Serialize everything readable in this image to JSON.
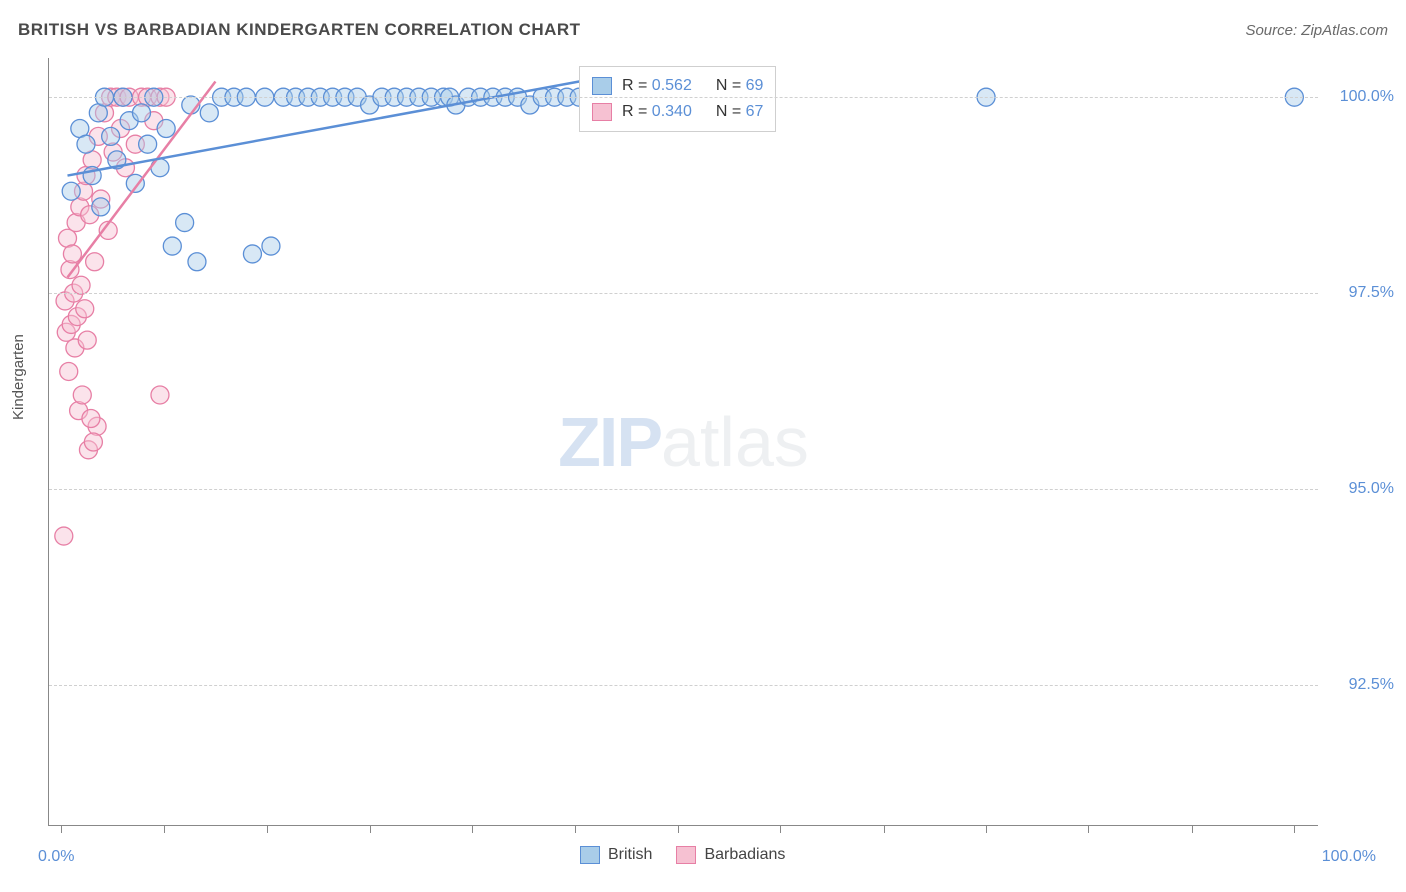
{
  "header": {
    "title": "BRITISH VS BARBADIAN KINDERGARTEN CORRELATION CHART",
    "source": "Source: ZipAtlas.com"
  },
  "axes": {
    "ylabel": "Kindergarten",
    "y_ticks": [
      {
        "value": 100.0,
        "label": "100.0%"
      },
      {
        "value": 97.5,
        "label": "97.5%"
      },
      {
        "value": 95.0,
        "label": "95.0%"
      },
      {
        "value": 92.5,
        "label": "92.5%"
      }
    ],
    "y_min": 90.7,
    "y_max": 100.5,
    "x_min": -1.0,
    "x_max": 102.0,
    "x_tick_positions": [
      0,
      8.3,
      16.7,
      25,
      33.3,
      41.7,
      50,
      58.3,
      66.7,
      75,
      83.3,
      91.7,
      100
    ],
    "x_left_label": "0.0%",
    "x_right_label": "100.0%"
  },
  "colors": {
    "series1_fill": "#a9cde9",
    "series1_stroke": "#5b8fd6",
    "series2_fill": "#f6c1d2",
    "series2_stroke": "#e77fa5",
    "grid": "#d0d0d0",
    "axis": "#888888",
    "tick_text": "#5b8fd6",
    "title_text": "#4a4a4a"
  },
  "marker": {
    "radius": 9,
    "fill_opacity": 0.45,
    "stroke_width": 1.3
  },
  "legend_stats": {
    "series1": {
      "R": "0.562",
      "N": "69"
    },
    "series2": {
      "R": "0.340",
      "N": "67"
    },
    "labels": {
      "r_prefix": "R = ",
      "n_prefix": "N = "
    }
  },
  "bottom_legend": {
    "series1": "British",
    "series2": "Barbadians"
  },
  "watermark": {
    "part1": "ZIP",
    "part2": "atlas"
  },
  "trend_lines": {
    "series1": {
      "x1": 0.5,
      "y1": 99.0,
      "x2": 42.0,
      "y2": 100.2
    },
    "series2": {
      "x1": 0.5,
      "y1": 97.7,
      "x2": 12.5,
      "y2": 100.2
    }
  },
  "series1_points": [
    [
      0.8,
      98.8
    ],
    [
      1.5,
      99.6
    ],
    [
      2.0,
      99.4
    ],
    [
      2.5,
      99.0
    ],
    [
      3.0,
      99.8
    ],
    [
      3.2,
      98.6
    ],
    [
      3.5,
      100.0
    ],
    [
      4.0,
      99.5
    ],
    [
      4.5,
      99.2
    ],
    [
      5.0,
      100.0
    ],
    [
      5.5,
      99.7
    ],
    [
      6.0,
      98.9
    ],
    [
      6.5,
      99.8
    ],
    [
      7.0,
      99.4
    ],
    [
      7.5,
      100.0
    ],
    [
      8.0,
      99.1
    ],
    [
      8.5,
      99.6
    ],
    [
      9.0,
      98.1
    ],
    [
      10.0,
      98.4
    ],
    [
      10.5,
      99.9
    ],
    [
      11.0,
      97.9
    ],
    [
      12.0,
      99.8
    ],
    [
      13.0,
      100.0
    ],
    [
      14.0,
      100.0
    ],
    [
      15.0,
      100.0
    ],
    [
      15.5,
      98.0
    ],
    [
      16.5,
      100.0
    ],
    [
      17.0,
      98.1
    ],
    [
      18.0,
      100.0
    ],
    [
      19.0,
      100.0
    ],
    [
      20.0,
      100.0
    ],
    [
      21.0,
      100.0
    ],
    [
      22.0,
      100.0
    ],
    [
      23.0,
      100.0
    ],
    [
      24.0,
      100.0
    ],
    [
      25.0,
      99.9
    ],
    [
      26.0,
      100.0
    ],
    [
      27.0,
      100.0
    ],
    [
      28.0,
      100.0
    ],
    [
      29.0,
      100.0
    ],
    [
      30.0,
      100.0
    ],
    [
      31.0,
      100.0
    ],
    [
      31.5,
      100.0
    ],
    [
      32.0,
      99.9
    ],
    [
      33.0,
      100.0
    ],
    [
      34.0,
      100.0
    ],
    [
      35.0,
      100.0
    ],
    [
      36.0,
      100.0
    ],
    [
      37.0,
      100.0
    ],
    [
      38.0,
      99.9
    ],
    [
      39.0,
      100.0
    ],
    [
      40.0,
      100.0
    ],
    [
      41.0,
      100.0
    ],
    [
      42.0,
      100.0
    ],
    [
      75.0,
      100.0
    ],
    [
      100.0,
      100.0
    ]
  ],
  "series2_points": [
    [
      0.3,
      97.4
    ],
    [
      0.4,
      97.0
    ],
    [
      0.5,
      98.2
    ],
    [
      0.6,
      96.5
    ],
    [
      0.7,
      97.8
    ],
    [
      0.8,
      97.1
    ],
    [
      0.9,
      98.0
    ],
    [
      1.0,
      97.5
    ],
    [
      1.1,
      96.8
    ],
    [
      1.2,
      98.4
    ],
    [
      1.3,
      97.2
    ],
    [
      1.4,
      96.0
    ],
    [
      1.5,
      98.6
    ],
    [
      1.6,
      97.6
    ],
    [
      1.7,
      96.2
    ],
    [
      1.8,
      98.8
    ],
    [
      1.9,
      97.3
    ],
    [
      2.0,
      99.0
    ],
    [
      2.1,
      96.9
    ],
    [
      2.2,
      95.5
    ],
    [
      2.3,
      98.5
    ],
    [
      2.5,
      99.2
    ],
    [
      2.7,
      97.9
    ],
    [
      2.9,
      95.8
    ],
    [
      3.0,
      99.5
    ],
    [
      3.2,
      98.7
    ],
    [
      3.5,
      99.8
    ],
    [
      3.8,
      98.3
    ],
    [
      4.0,
      100.0
    ],
    [
      4.2,
      99.3
    ],
    [
      4.5,
      100.0
    ],
    [
      4.8,
      99.6
    ],
    [
      5.0,
      100.0
    ],
    [
      5.2,
      99.1
    ],
    [
      5.5,
      100.0
    ],
    [
      6.0,
      99.4
    ],
    [
      6.5,
      100.0
    ],
    [
      7.0,
      100.0
    ],
    [
      7.5,
      99.7
    ],
    [
      8.0,
      100.0
    ],
    [
      8.5,
      100.0
    ],
    [
      0.2,
      94.4
    ],
    [
      2.4,
      95.9
    ],
    [
      2.6,
      95.6
    ],
    [
      8.0,
      96.2
    ]
  ]
}
